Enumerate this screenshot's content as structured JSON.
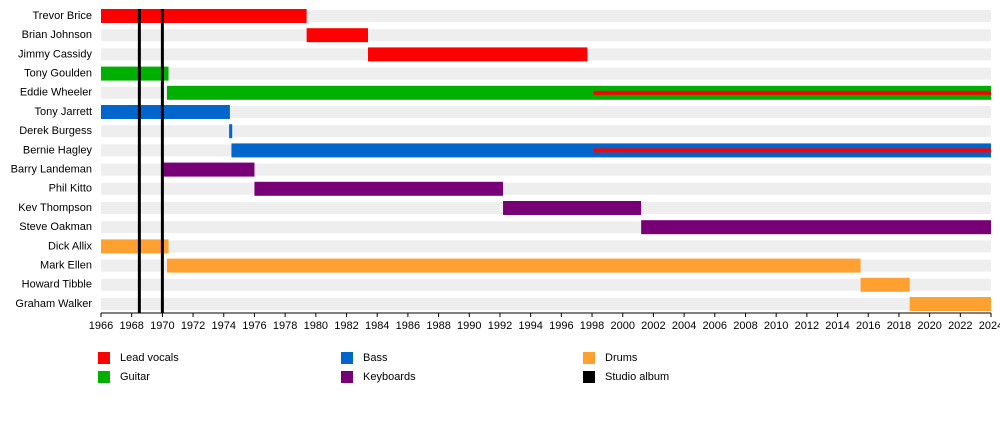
{
  "chart_data": {
    "type": "timeline",
    "xlim": [
      1966,
      2024
    ],
    "xticks": [
      1966,
      1968,
      1970,
      1972,
      1974,
      1976,
      1978,
      1980,
      1982,
      1984,
      1986,
      1988,
      1990,
      1992,
      1994,
      1996,
      1998,
      2000,
      2002,
      2004,
      2006,
      2008,
      2010,
      2012,
      2014,
      2016,
      2018,
      2020,
      2022,
      2024
    ],
    "legend": [
      {
        "name": "Lead vocals",
        "color": "#ff0000"
      },
      {
        "name": "Guitar",
        "color": "#00b000"
      },
      {
        "name": "Bass",
        "color": "#0066cc"
      },
      {
        "name": "Keyboards",
        "color": "#770077"
      },
      {
        "name": "Drums",
        "color": "#ffa030"
      },
      {
        "name": "Studio album",
        "color": "#000000"
      }
    ],
    "studio_albums": [
      1968.5,
      1970.0
    ],
    "rows": [
      {
        "name": "Trevor Brice",
        "bars": [
          {
            "role": "Lead vocals",
            "start": 1966,
            "end": 1979.4
          }
        ]
      },
      {
        "name": "Brian Johnson",
        "bars": [
          {
            "role": "Lead vocals",
            "start": 1979.4,
            "end": 1983.4
          }
        ]
      },
      {
        "name": "Jimmy Cassidy",
        "bars": [
          {
            "role": "Lead vocals",
            "start": 1983.4,
            "end": 1997.7
          }
        ]
      },
      {
        "name": "Tony Goulden",
        "bars": [
          {
            "role": "Guitar",
            "start": 1966,
            "end": 1970.4
          }
        ]
      },
      {
        "name": "Eddie Wheeler",
        "bars": [
          {
            "role": "Guitar",
            "start": 1970.3,
            "end": 2024
          },
          {
            "role": "Lead vocals",
            "start": 1998.1,
            "end": 2024
          }
        ]
      },
      {
        "name": "Tony Jarrett",
        "bars": [
          {
            "role": "Bass",
            "start": 1966,
            "end": 1974.4
          }
        ]
      },
      {
        "name": "Derek Burgess",
        "bars": [
          {
            "role": "Bass",
            "start": 1974.35,
            "end": 1974.55
          }
        ]
      },
      {
        "name": "Bernie Hagley",
        "bars": [
          {
            "role": "Bass",
            "start": 1974.5,
            "end": 2024
          },
          {
            "role": "Lead vocals",
            "start": 1998.1,
            "end": 2024
          }
        ]
      },
      {
        "name": "Barry Landeman",
        "bars": [
          {
            "role": "Keyboards",
            "start": 1970.0,
            "end": 1976.0
          }
        ]
      },
      {
        "name": "Phil Kitto",
        "bars": [
          {
            "role": "Keyboards",
            "start": 1976.0,
            "end": 1992.2
          }
        ]
      },
      {
        "name": "Kev Thompson",
        "bars": [
          {
            "role": "Keyboards",
            "start": 1992.2,
            "end": 2001.2
          }
        ]
      },
      {
        "name": "Steve Oakman",
        "bars": [
          {
            "role": "Keyboards",
            "start": 2001.2,
            "end": 2024
          }
        ]
      },
      {
        "name": "Dick Allix",
        "bars": [
          {
            "role": "Drums",
            "start": 1966,
            "end": 1970.4
          }
        ]
      },
      {
        "name": "Mark Ellen",
        "bars": [
          {
            "role": "Drums",
            "start": 1970.3,
            "end": 2015.5
          }
        ]
      },
      {
        "name": "Howard Tibble",
        "bars": [
          {
            "role": "Drums",
            "start": 2015.5,
            "end": 2018.7
          }
        ]
      },
      {
        "name": "Graham Walker",
        "bars": [
          {
            "role": "Drums",
            "start": 2018.7,
            "end": 2024
          }
        ]
      }
    ]
  }
}
